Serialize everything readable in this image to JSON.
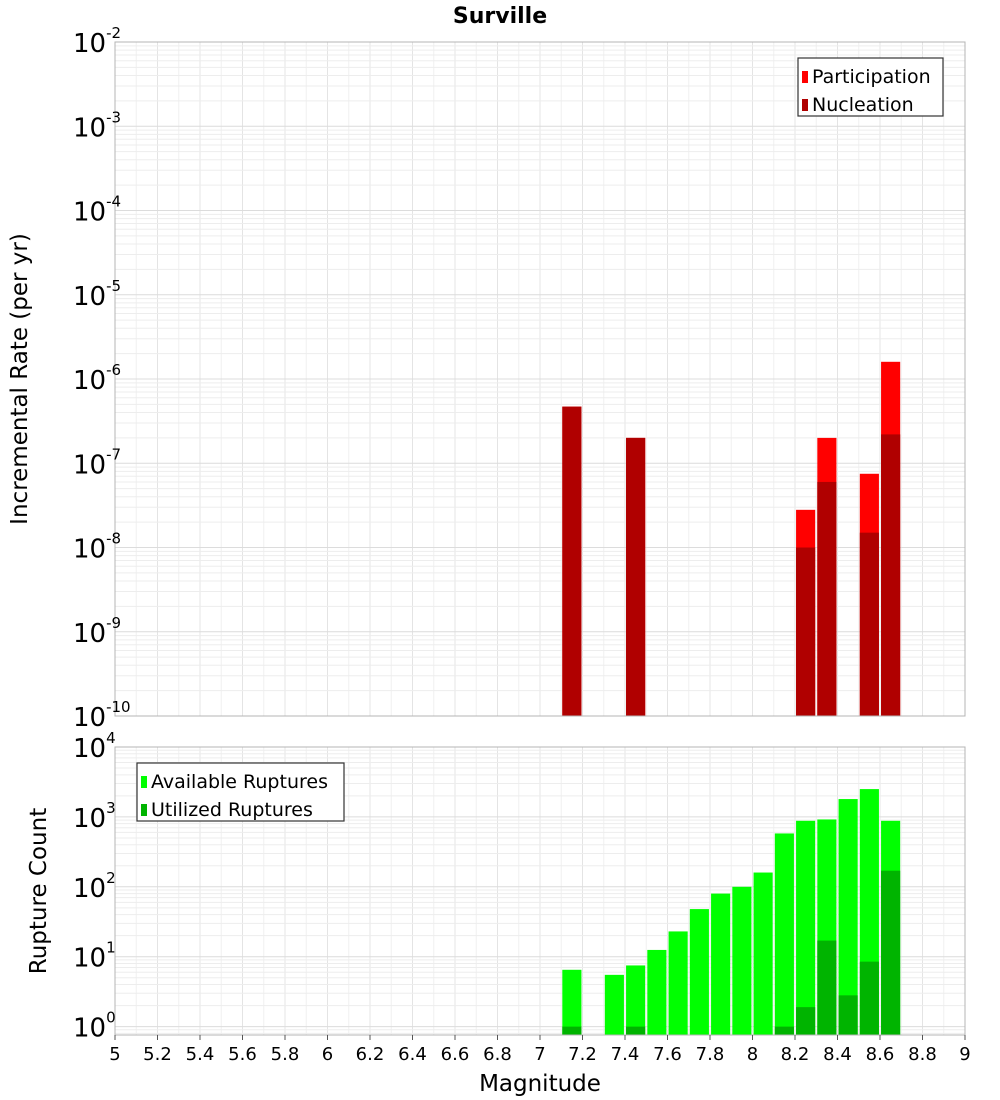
{
  "chart_data": {
    "title": "Surville",
    "xlabel": "Magnitude",
    "xlim": [
      5,
      9
    ],
    "x_ticks": [
      "5",
      "5.2",
      "5.4",
      "5.6",
      "5.8",
      "6",
      "6.2",
      "6.4",
      "6.6",
      "6.8",
      "7",
      "7.2",
      "7.4",
      "7.6",
      "7.8",
      "8",
      "8.2",
      "8.4",
      "8.6",
      "8.8",
      "9"
    ],
    "bar_width": 0.09,
    "panels": [
      {
        "type": "bar",
        "scale": "log",
        "ylabel": "Incremental Rate (per yr)",
        "ylim_exp": [
          -10,
          -2
        ],
        "tick_exponents": [
          "-10",
          "-9",
          "-8",
          "-7",
          "-6",
          "-5",
          "-4",
          "-3",
          "-2"
        ],
        "legend_position": "top-right",
        "grid": true,
        "series": [
          {
            "name": "Participation",
            "color": "#ff0000",
            "x": [
              7.15,
              7.45,
              8.25,
              8.35,
              8.55,
              8.65
            ],
            "values": [
              4.7e-07,
              2e-07,
              2.8e-08,
              2e-07,
              7.5e-08,
              1.6e-06
            ]
          },
          {
            "name": "Nucleation",
            "color": "#b00000",
            "x": [
              7.15,
              7.45,
              8.25,
              8.35,
              8.55,
              8.65
            ],
            "values": [
              4.7e-07,
              2e-07,
              1e-08,
              6e-08,
              1.5e-08,
              2.2e-07
            ]
          }
        ]
      },
      {
        "type": "bar",
        "scale": "log",
        "ylabel": "Rupture Count",
        "ylim_exp": [
          -0.12,
          4
        ],
        "tick_exponents": [
          "0",
          "1",
          "2",
          "3",
          "4"
        ],
        "legend_position": "top-left",
        "grid": true,
        "series": [
          {
            "name": "Available Ruptures",
            "color": "#00ff00",
            "x": [
              7.15,
              7.35,
              7.45,
              7.55,
              7.65,
              7.75,
              7.85,
              7.95,
              8.05,
              8.15,
              8.25,
              8.35,
              8.45,
              8.55,
              8.65
            ],
            "values": [
              6.5,
              5.5,
              7.5,
              12.5,
              23,
              48,
              80,
              100,
              160,
              580,
              880,
              920,
              1800,
              2500,
              880
            ]
          },
          {
            "name": "Utilized Ruptures",
            "color": "#00b400",
            "x": [
              7.15,
              7.45,
              8.15,
              8.25,
              8.35,
              8.45,
              8.55,
              8.65
            ],
            "values": [
              1,
              1,
              1,
              1.9,
              17,
              2.8,
              8.5,
              170
            ]
          }
        ]
      }
    ]
  }
}
